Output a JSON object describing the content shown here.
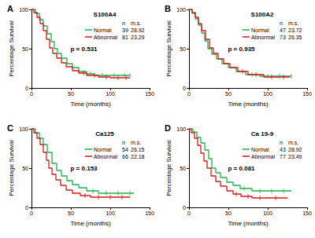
{
  "chart_data": [
    {
      "type": "step",
      "title": "A",
      "subtitle": "S100A4",
      "xlabel": "Time (months)",
      "ylabel": "Percentage Survival",
      "xlim": [
        0,
        150
      ],
      "xticks": [
        0,
        50,
        100,
        150
      ],
      "ylim": [
        0,
        100
      ],
      "yticks": [
        0,
        50,
        100
      ],
      "grid": false,
      "legend": "upper right",
      "legend_headers": [
        "n",
        "m.s."
      ],
      "annotations": [
        {
          "text": "p = 0.531"
        }
      ],
      "series": [
        {
          "name": "Normal",
          "color": "#22b14c",
          "n": 39,
          "median_survival": 28.92,
          "marker": "tick",
          "x": [
            0,
            5,
            10,
            15,
            20,
            25,
            29,
            33,
            38,
            45,
            52,
            60,
            70,
            80,
            125
          ],
          "values": [
            100,
            95,
            87,
            79,
            69,
            59,
            50,
            44,
            38,
            31,
            26,
            21,
            18,
            16,
            16
          ],
          "censored": [
            [
              75,
              18
            ],
            [
              90,
              16
            ],
            [
              105,
              16
            ],
            [
              118,
              16
            ],
            [
              125,
              16
            ]
          ]
        },
        {
          "name": "Abnormal",
          "color": "#d7191c",
          "n": 81,
          "median_survival": 23.29,
          "marker": "tick",
          "x": [
            0,
            3,
            7,
            11,
            15,
            19,
            23,
            27,
            32,
            38,
            44,
            52,
            60,
            70,
            85,
            100,
            125
          ],
          "values": [
            100,
            96,
            90,
            82,
            73,
            62,
            51,
            44,
            38,
            32,
            27,
            22,
            19,
            16,
            14,
            13,
            13
          ],
          "censored": [
            [
              66,
              19
            ],
            [
              80,
              16
            ],
            [
              95,
              14
            ],
            [
              110,
              13
            ],
            [
              120,
              13
            ]
          ]
        }
      ]
    },
    {
      "type": "step",
      "title": "B",
      "subtitle": "S100A2",
      "xlabel": "Time (months)",
      "ylabel": "Percentage Survival",
      "xlim": [
        0,
        150
      ],
      "xticks": [
        0,
        50,
        100,
        150
      ],
      "ylim": [
        0,
        100
      ],
      "yticks": [
        0,
        50,
        100
      ],
      "grid": false,
      "legend": "upper right",
      "legend_headers": [
        "n",
        "m.s."
      ],
      "annotations": [
        {
          "text": "p = 0.935"
        }
      ],
      "series": [
        {
          "name": "Normal",
          "color": "#22b14c",
          "n": 47,
          "median_survival": 23.72,
          "marker": "tick",
          "x": [
            0,
            4,
            8,
            12,
            16,
            20,
            24,
            29,
            35,
            42,
            50,
            60,
            72,
            90,
            130
          ],
          "values": [
            100,
            95,
            88,
            80,
            70,
            60,
            50,
            43,
            37,
            31,
            26,
            21,
            17,
            15,
            15
          ],
          "censored": [
            [
              80,
              17
            ],
            [
              100,
              15
            ],
            [
              115,
              15
            ],
            [
              130,
              15
            ]
          ]
        },
        {
          "name": "Abnormal",
          "color": "#d7191c",
          "n": 73,
          "median_survival": 26.35,
          "marker": "tick",
          "x": [
            0,
            4,
            8,
            12,
            16,
            21,
            26,
            31,
            37,
            44,
            52,
            62,
            75,
            95,
            128
          ],
          "values": [
            100,
            96,
            90,
            82,
            73,
            62,
            51,
            44,
            37,
            31,
            26,
            21,
            17,
            14,
            14
          ],
          "censored": [
            [
              68,
              21
            ],
            [
              85,
              17
            ],
            [
              105,
              14
            ],
            [
              120,
              14
            ]
          ]
        }
      ]
    },
    {
      "type": "step",
      "title": "C",
      "subtitle": "Ca125",
      "xlabel": "Time (months)",
      "ylabel": "Percentage Survival",
      "xlim": [
        0,
        150
      ],
      "xticks": [
        0,
        50,
        100,
        150
      ],
      "ylim": [
        0,
        100
      ],
      "yticks": [
        0,
        50,
        100
      ],
      "grid": false,
      "legend": "upper right",
      "legend_headers": [
        "n",
        "m.s."
      ],
      "annotations": [
        {
          "text": "p = 0.153"
        }
      ],
      "series": [
        {
          "name": "Normal",
          "color": "#22b14c",
          "n": 54,
          "median_survival": 26.15,
          "marker": "tick",
          "x": [
            0,
            5,
            10,
            15,
            20,
            26,
            32,
            38,
            45,
            52,
            60,
            70,
            85,
            130
          ],
          "values": [
            100,
            95,
            88,
            80,
            70,
            56,
            47,
            40,
            34,
            29,
            25,
            21,
            18,
            18
          ],
          "censored": [
            [
              78,
              21
            ],
            [
              95,
              18
            ],
            [
              110,
              18
            ],
            [
              125,
              18
            ]
          ]
        },
        {
          "name": "Abnormal",
          "color": "#d7191c",
          "n": 66,
          "median_survival": 22.18,
          "marker": "tick",
          "x": [
            0,
            3,
            7,
            11,
            15,
            19,
            22,
            26,
            31,
            37,
            44,
            52,
            62,
            75,
            125
          ],
          "values": [
            100,
            95,
            88,
            80,
            70,
            60,
            50,
            42,
            35,
            28,
            22,
            18,
            15,
            13,
            13
          ],
          "censored": [
            [
              68,
              15
            ],
            [
              85,
              13
            ],
            [
              100,
              13
            ],
            [
              115,
              13
            ]
          ]
        }
      ]
    },
    {
      "type": "step",
      "title": "D",
      "subtitle": "Ca 19-9",
      "xlabel": "Time (months)",
      "ylabel": "Percentage Survival",
      "xlim": [
        0,
        150
      ],
      "xticks": [
        0,
        50,
        100,
        150
      ],
      "ylim": [
        0,
        100
      ],
      "yticks": [
        0,
        50,
        100
      ],
      "grid": false,
      "legend": "upper right",
      "legend_headers": [
        "n",
        "m.s."
      ],
      "annotations": [
        {
          "text": "p = 0.081"
        }
      ],
      "series": [
        {
          "name": "Normal",
          "color": "#22b14c",
          "n": 43,
          "median_survival": 28.92,
          "marker": "tick",
          "x": [
            0,
            5,
            10,
            15,
            20,
            25,
            29,
            34,
            40,
            48,
            56,
            65,
            80,
            130
          ],
          "values": [
            100,
            96,
            89,
            82,
            73,
            62,
            50,
            44,
            38,
            32,
            28,
            24,
            21,
            21
          ],
          "censored": [
            [
              70,
              24
            ],
            [
              90,
              21
            ],
            [
              105,
              21
            ],
            [
              120,
              21
            ]
          ]
        },
        {
          "name": "Abnormal",
          "color": "#d7191c",
          "n": 77,
          "median_survival": 23.49,
          "marker": "tick",
          "x": [
            0,
            3,
            7,
            11,
            15,
            19,
            23,
            28,
            34,
            40,
            48,
            56,
            66,
            80,
            125
          ],
          "values": [
            100,
            95,
            88,
            79,
            69,
            59,
            50,
            40,
            33,
            27,
            21,
            17,
            14,
            12,
            12
          ],
          "censored": [
            [
              60,
              17
            ],
            [
              75,
              14
            ],
            [
              90,
              12
            ],
            [
              110,
              12
            ]
          ]
        }
      ]
    }
  ]
}
